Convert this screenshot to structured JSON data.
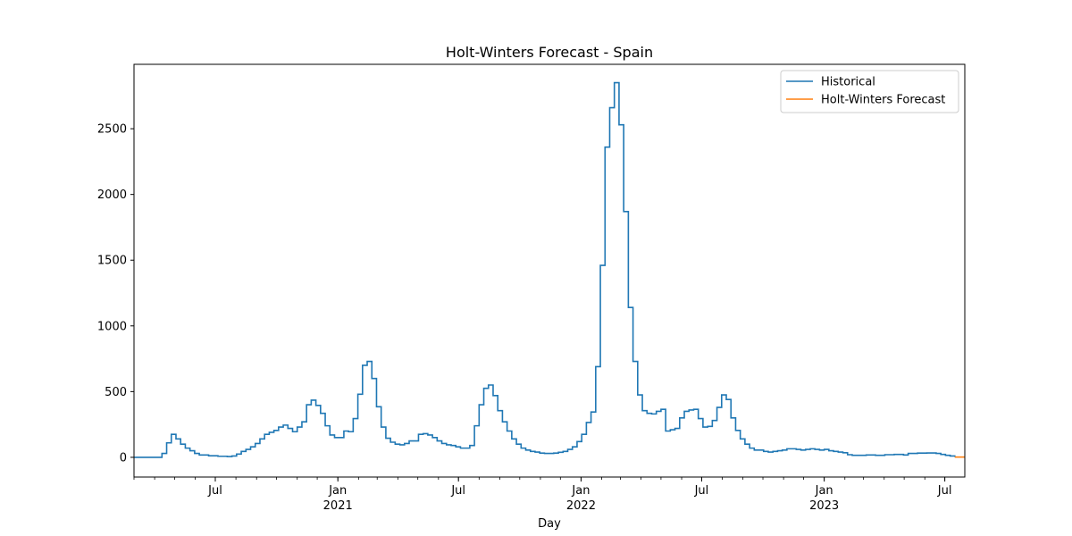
{
  "chart_data": {
    "type": "line",
    "title": "Holt-Winters Forecast - Spain",
    "xlabel": "Day",
    "ylabel": "",
    "x_range": [
      "2020-03-01",
      "2023-07-31"
    ],
    "ylim": [
      -150,
      2990
    ],
    "y_ticks": [
      0,
      500,
      1000,
      1500,
      2000,
      2500
    ],
    "x_major_ticks": [
      {
        "date": "2020-07-01",
        "label": "Jul",
        "year": ""
      },
      {
        "date": "2021-01-01",
        "label": "Jan",
        "year": "2021"
      },
      {
        "date": "2021-07-01",
        "label": "Jul",
        "year": ""
      },
      {
        "date": "2022-01-01",
        "label": "Jan",
        "year": "2022"
      },
      {
        "date": "2022-07-01",
        "label": "Jul",
        "year": ""
      },
      {
        "date": "2023-01-01",
        "label": "Jan",
        "year": "2023"
      },
      {
        "date": "2023-07-01",
        "label": "Jul",
        "year": ""
      }
    ],
    "grid": false,
    "legend": "top-right",
    "series": [
      {
        "name": "Historical",
        "color": "#1f77b4",
        "step": true,
        "points": [
          [
            "2020-03-01",
            0
          ],
          [
            "2020-04-05",
            0
          ],
          [
            "2020-04-12",
            30
          ],
          [
            "2020-04-19",
            110
          ],
          [
            "2020-04-26",
            175
          ],
          [
            "2020-05-03",
            140
          ],
          [
            "2020-05-10",
            100
          ],
          [
            "2020-05-17",
            70
          ],
          [
            "2020-05-24",
            50
          ],
          [
            "2020-05-31",
            30
          ],
          [
            "2020-06-07",
            18
          ],
          [
            "2020-06-21",
            12
          ],
          [
            "2020-07-05",
            8
          ],
          [
            "2020-07-19",
            6
          ],
          [
            "2020-07-26",
            10
          ],
          [
            "2020-08-02",
            25
          ],
          [
            "2020-08-09",
            45
          ],
          [
            "2020-08-16",
            60
          ],
          [
            "2020-08-23",
            80
          ],
          [
            "2020-08-30",
            105
          ],
          [
            "2020-09-06",
            140
          ],
          [
            "2020-09-13",
            175
          ],
          [
            "2020-09-20",
            190
          ],
          [
            "2020-09-27",
            205
          ],
          [
            "2020-10-04",
            230
          ],
          [
            "2020-10-11",
            245
          ],
          [
            "2020-10-18",
            220
          ],
          [
            "2020-10-25",
            195
          ],
          [
            "2020-11-01",
            230
          ],
          [
            "2020-11-08",
            270
          ],
          [
            "2020-11-15",
            400
          ],
          [
            "2020-11-22",
            435
          ],
          [
            "2020-11-29",
            395
          ],
          [
            "2020-12-06",
            335
          ],
          [
            "2020-12-13",
            240
          ],
          [
            "2020-12-20",
            170
          ],
          [
            "2020-12-27",
            150
          ],
          [
            "2021-01-10",
            200
          ],
          [
            "2021-01-17",
            195
          ],
          [
            "2021-01-24",
            295
          ],
          [
            "2021-01-31",
            480
          ],
          [
            "2021-02-07",
            700
          ],
          [
            "2021-02-14",
            730
          ],
          [
            "2021-02-21",
            600
          ],
          [
            "2021-02-28",
            385
          ],
          [
            "2021-03-07",
            230
          ],
          [
            "2021-03-14",
            145
          ],
          [
            "2021-03-21",
            115
          ],
          [
            "2021-03-28",
            100
          ],
          [
            "2021-04-04",
            95
          ],
          [
            "2021-04-11",
            105
          ],
          [
            "2021-04-18",
            125
          ],
          [
            "2021-05-02",
            175
          ],
          [
            "2021-05-09",
            180
          ],
          [
            "2021-05-16",
            170
          ],
          [
            "2021-05-23",
            150
          ],
          [
            "2021-05-30",
            125
          ],
          [
            "2021-06-06",
            105
          ],
          [
            "2021-06-13",
            95
          ],
          [
            "2021-06-20",
            90
          ],
          [
            "2021-06-27",
            80
          ],
          [
            "2021-07-04",
            70
          ],
          [
            "2021-07-18",
            90
          ],
          [
            "2021-07-25",
            240
          ],
          [
            "2021-08-01",
            400
          ],
          [
            "2021-08-08",
            525
          ],
          [
            "2021-08-15",
            550
          ],
          [
            "2021-08-22",
            470
          ],
          [
            "2021-08-29",
            355
          ],
          [
            "2021-09-05",
            270
          ],
          [
            "2021-09-12",
            200
          ],
          [
            "2021-09-19",
            140
          ],
          [
            "2021-09-26",
            100
          ],
          [
            "2021-10-03",
            70
          ],
          [
            "2021-10-10",
            55
          ],
          [
            "2021-10-17",
            45
          ],
          [
            "2021-10-24",
            40
          ],
          [
            "2021-10-31",
            32
          ],
          [
            "2021-11-07",
            30
          ],
          [
            "2021-11-21",
            32
          ],
          [
            "2021-11-28",
            38
          ],
          [
            "2021-12-05",
            45
          ],
          [
            "2021-12-12",
            60
          ],
          [
            "2021-12-19",
            80
          ],
          [
            "2021-12-26",
            120
          ],
          [
            "2022-01-02",
            175
          ],
          [
            "2022-01-09",
            265
          ],
          [
            "2022-01-16",
            345
          ],
          [
            "2022-01-23",
            690
          ],
          [
            "2022-01-30",
            1460
          ],
          [
            "2022-02-06",
            2360
          ],
          [
            "2022-02-13",
            2660
          ],
          [
            "2022-02-20",
            2850
          ],
          [
            "2022-02-27",
            2530
          ],
          [
            "2022-03-06",
            1870
          ],
          [
            "2022-03-13",
            1140
          ],
          [
            "2022-03-20",
            730
          ],
          [
            "2022-03-27",
            475
          ],
          [
            "2022-04-03",
            355
          ],
          [
            "2022-04-10",
            335
          ],
          [
            "2022-04-17",
            330
          ],
          [
            "2022-04-24",
            350
          ],
          [
            "2022-05-01",
            365
          ],
          [
            "2022-05-08",
            200
          ],
          [
            "2022-05-15",
            210
          ],
          [
            "2022-05-22",
            220
          ],
          [
            "2022-05-29",
            300
          ],
          [
            "2022-06-05",
            350
          ],
          [
            "2022-06-12",
            360
          ],
          [
            "2022-06-19",
            365
          ],
          [
            "2022-06-26",
            295
          ],
          [
            "2022-07-03",
            230
          ],
          [
            "2022-07-10",
            235
          ],
          [
            "2022-07-17",
            280
          ],
          [
            "2022-07-24",
            380
          ],
          [
            "2022-07-31",
            475
          ],
          [
            "2022-08-07",
            440
          ],
          [
            "2022-08-14",
            300
          ],
          [
            "2022-08-21",
            205
          ],
          [
            "2022-08-28",
            140
          ],
          [
            "2022-09-04",
            100
          ],
          [
            "2022-09-11",
            70
          ],
          [
            "2022-09-18",
            55
          ],
          [
            "2022-10-02",
            45
          ],
          [
            "2022-10-09",
            40
          ],
          [
            "2022-10-16",
            45
          ],
          [
            "2022-10-23",
            50
          ],
          [
            "2022-10-30",
            55
          ],
          [
            "2022-11-06",
            65
          ],
          [
            "2022-11-20",
            60
          ],
          [
            "2022-11-27",
            55
          ],
          [
            "2022-12-04",
            60
          ],
          [
            "2022-12-11",
            65
          ],
          [
            "2022-12-18",
            60
          ],
          [
            "2022-12-25",
            55
          ],
          [
            "2023-01-01",
            60
          ],
          [
            "2023-01-08",
            50
          ],
          [
            "2023-01-15",
            45
          ],
          [
            "2023-01-22",
            40
          ],
          [
            "2023-01-29",
            35
          ],
          [
            "2023-02-05",
            20
          ],
          [
            "2023-02-12",
            15
          ],
          [
            "2023-03-05",
            18
          ],
          [
            "2023-03-19",
            15
          ],
          [
            "2023-04-02",
            20
          ],
          [
            "2023-04-16",
            22
          ],
          [
            "2023-04-30",
            18
          ],
          [
            "2023-05-07",
            30
          ],
          [
            "2023-05-21",
            32
          ],
          [
            "2023-06-04",
            33
          ],
          [
            "2023-06-18",
            30
          ],
          [
            "2023-06-25",
            22
          ],
          [
            "2023-07-02",
            15
          ],
          [
            "2023-07-09",
            10
          ],
          [
            "2023-07-16",
            3
          ]
        ]
      },
      {
        "name": "Holt-Winters Forecast",
        "color": "#ff7f0e",
        "step": false,
        "points": [
          [
            "2023-07-16",
            2
          ],
          [
            "2023-07-31",
            2
          ]
        ]
      }
    ]
  }
}
